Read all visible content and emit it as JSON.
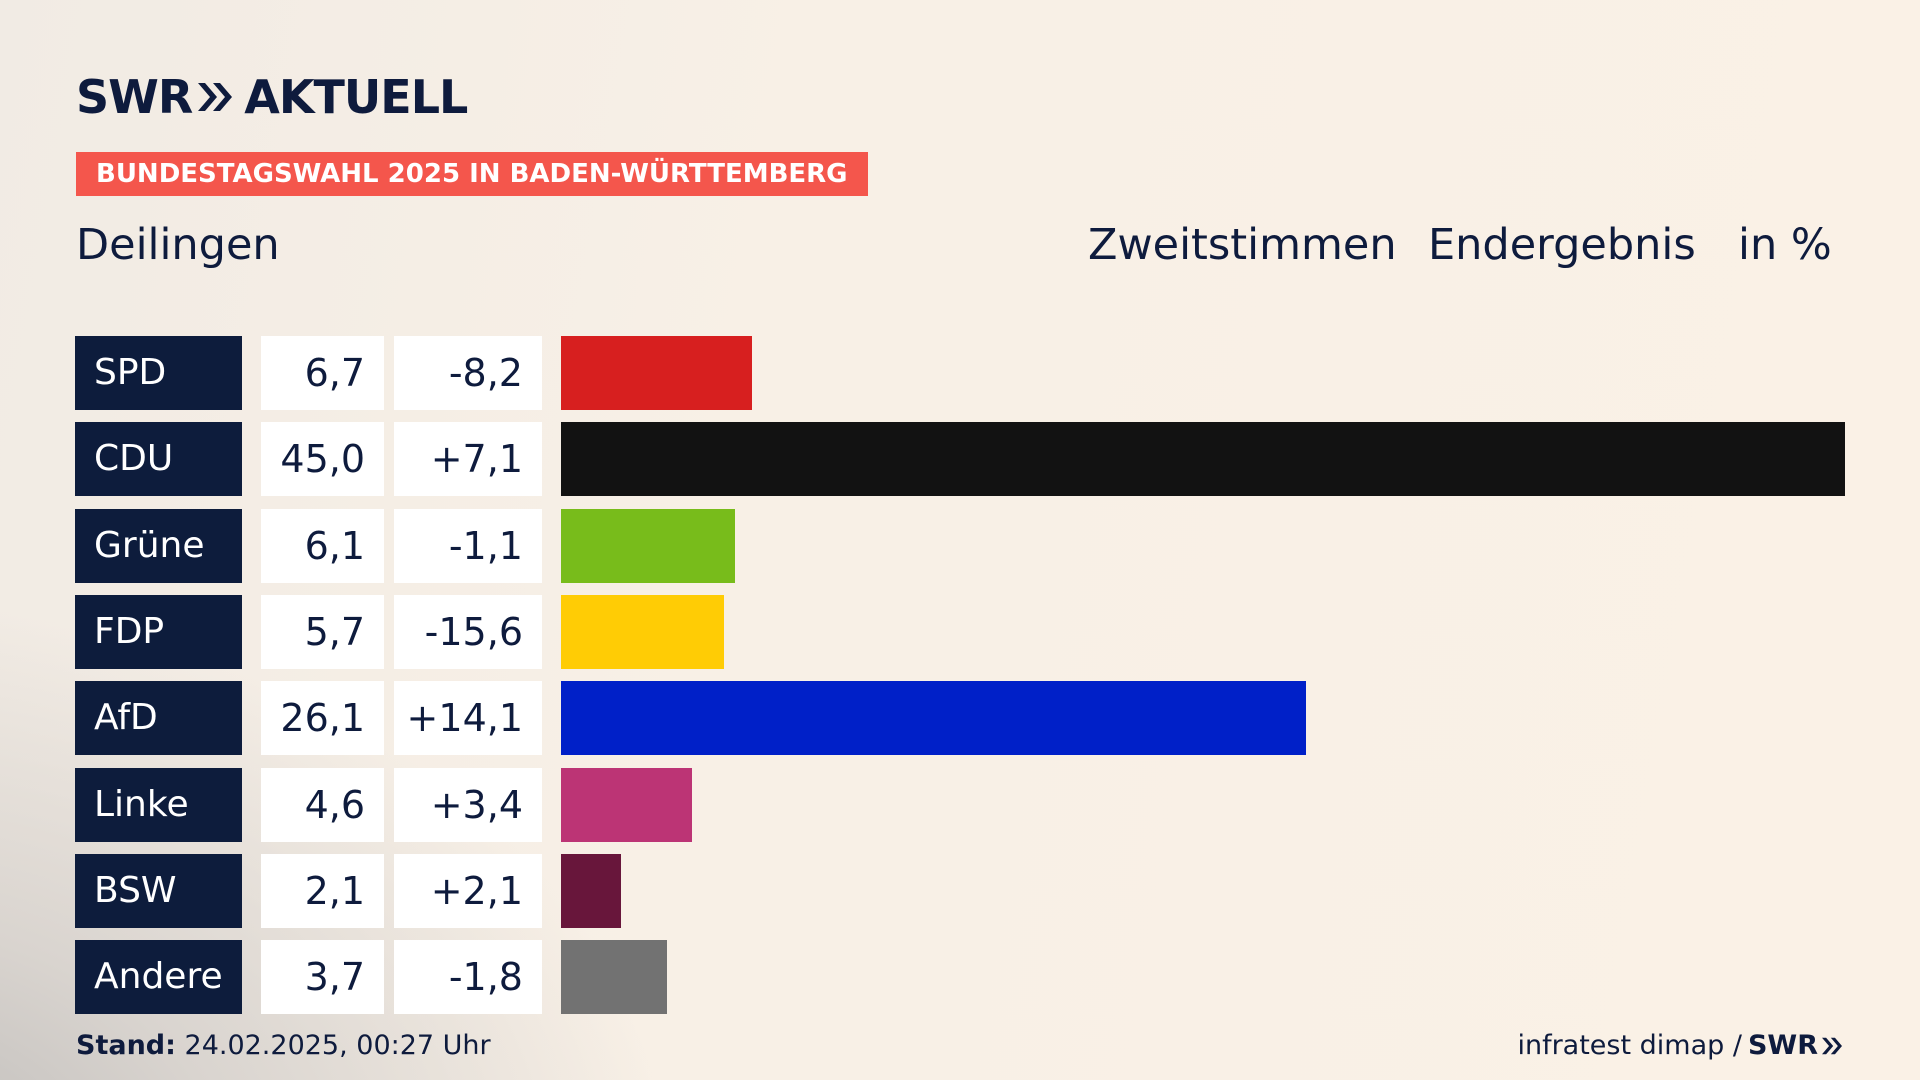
{
  "brand": {
    "left": "SWR",
    "right": "AKTUELL"
  },
  "topic_label": "BUNDESTAGSWAHL 2025 IN BADEN-WÜRTTEMBERG",
  "place": "Deilingen",
  "header": {
    "vote_type": "Zweitstimmen",
    "status": "Endergebnis",
    "unit": "in %"
  },
  "footer": {
    "stand_label": "Stand:",
    "stand_value": "24.02.2025, 00:27 Uhr",
    "source": "infratest dimap /",
    "source_brand": "SWR"
  },
  "colors": {
    "SPD": "#d71f1f",
    "CDU": "#121212",
    "Grüne": "#78bc1b",
    "FDP": "#ffcc05",
    "AfD": "#0020c8",
    "Linke": "#bc3475",
    "BSW": "#68163b",
    "Andere": "#727272",
    "topic_bg": "#f4564c",
    "party_bg": "#0d1c3c",
    "text": "#0e1b3d"
  },
  "chart_data": {
    "type": "bar",
    "categories": [
      "SPD",
      "CDU",
      "Grüne",
      "FDP",
      "AfD",
      "Linke",
      "BSW",
      "Andere"
    ],
    "values": [
      6.7,
      45.0,
      6.1,
      5.7,
      26.1,
      4.6,
      2.1,
      3.7
    ],
    "value_labels": [
      "6,7",
      "45,0",
      "6,1",
      "5,7",
      "26,1",
      "4,6",
      "2,1",
      "3,7"
    ],
    "diff_labels": [
      "-8,2",
      "+7,1",
      "-1,1",
      "-15,6",
      "+14,1",
      "+3,4",
      "+2,1",
      "-1,8"
    ],
    "xlim": [
      0,
      45.0
    ],
    "orientation": "horizontal",
    "grid": false
  }
}
